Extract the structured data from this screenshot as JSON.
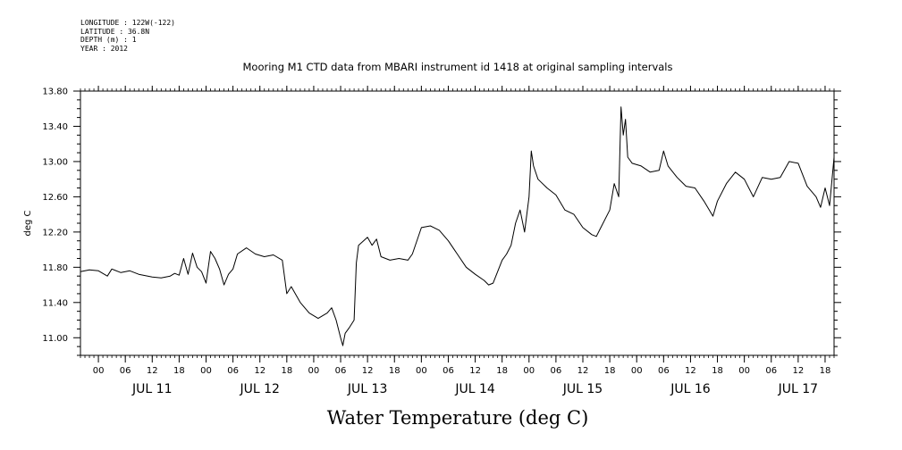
{
  "meta": {
    "longitude": "LONGITUDE : 122W(-122)",
    "latitude": "LATITUDE : 36.8N",
    "depth": "DEPTH (m) : 1",
    "year": "YEAR : 2012"
  },
  "chart_data": {
    "type": "line",
    "title": "Mooring M1 CTD data from MBARI instrument id 1418 at original sampling intervals",
    "xlabel": "Water Temperature (deg C)",
    "ylabel": "deg C",
    "ylim": [
      10.8,
      13.8
    ],
    "xlim": [
      "2012-07-10T20:00",
      "2012-07-17T20:00"
    ],
    "y_ticks": [
      "11.00",
      "11.40",
      "11.80",
      "12.20",
      "12.60",
      "13.00",
      "13.40",
      "13.80"
    ],
    "x_hour_ticks": [
      "00",
      "06",
      "12",
      "18",
      "00",
      "06",
      "12",
      "18",
      "00",
      "06",
      "12",
      "18",
      "00",
      "06",
      "12",
      "18",
      "00",
      "06",
      "12",
      "18",
      "00",
      "06",
      "12",
      "18",
      "00",
      "06",
      "12",
      "18"
    ],
    "x_day_labels": [
      "JUL 11",
      "JUL 12",
      "JUL 13",
      "JUL 14",
      "JUL 15",
      "JUL 16",
      "JUL 17"
    ],
    "grid": false,
    "series": [
      {
        "color": "#000000",
        "points": [
          [
            "2012-07-10T20:00",
            11.75
          ],
          [
            "2012-07-10T22:00",
            11.77
          ],
          [
            "2012-07-11T00:00",
            11.76
          ],
          [
            "2012-07-11T02:00",
            11.7
          ],
          [
            "2012-07-11T03:00",
            11.78
          ],
          [
            "2012-07-11T05:00",
            11.74
          ],
          [
            "2012-07-11T07:00",
            11.76
          ],
          [
            "2012-07-11T09:00",
            11.72
          ],
          [
            "2012-07-11T12:00",
            11.69
          ],
          [
            "2012-07-11T14:00",
            11.68
          ],
          [
            "2012-07-11T16:00",
            11.7
          ],
          [
            "2012-07-11T17:00",
            11.73
          ],
          [
            "2012-07-11T18:00",
            11.71
          ],
          [
            "2012-07-11T19:00",
            11.9
          ],
          [
            "2012-07-11T20:00",
            11.72
          ],
          [
            "2012-07-11T21:00",
            11.96
          ],
          [
            "2012-07-11T22:00",
            11.8
          ],
          [
            "2012-07-11T23:00",
            11.75
          ],
          [
            "2012-07-12T00:00",
            11.62
          ],
          [
            "2012-07-12T01:00",
            11.98
          ],
          [
            "2012-07-12T02:00",
            11.9
          ],
          [
            "2012-07-12T03:00",
            11.78
          ],
          [
            "2012-07-12T04:00",
            11.6
          ],
          [
            "2012-07-12T05:00",
            11.72
          ],
          [
            "2012-07-12T06:00",
            11.78
          ],
          [
            "2012-07-12T07:00",
            11.95
          ],
          [
            "2012-07-12T09:00",
            12.02
          ],
          [
            "2012-07-12T11:00",
            11.95
          ],
          [
            "2012-07-12T13:00",
            11.92
          ],
          [
            "2012-07-12T15:00",
            11.94
          ],
          [
            "2012-07-12T17:00",
            11.88
          ],
          [
            "2012-07-12T18:00",
            11.5
          ],
          [
            "2012-07-12T19:00",
            11.58
          ],
          [
            "2012-07-12T21:00",
            11.4
          ],
          [
            "2012-07-12T23:00",
            11.28
          ],
          [
            "2012-07-13T01:00",
            11.22
          ],
          [
            "2012-07-13T03:00",
            11.28
          ],
          [
            "2012-07-13T04:00",
            11.34
          ],
          [
            "2012-07-13T05:00",
            11.2
          ],
          [
            "2012-07-13T06:00",
            11.0
          ],
          [
            "2012-07-13T06:30",
            10.91
          ],
          [
            "2012-07-13T07:00",
            11.05
          ],
          [
            "2012-07-13T08:00",
            11.12
          ],
          [
            "2012-07-13T09:00",
            11.2
          ],
          [
            "2012-07-13T09:30",
            11.85
          ],
          [
            "2012-07-13T10:00",
            12.05
          ],
          [
            "2012-07-13T12:00",
            12.14
          ],
          [
            "2012-07-13T13:00",
            12.05
          ],
          [
            "2012-07-13T14:00",
            12.12
          ],
          [
            "2012-07-13T15:00",
            11.92
          ],
          [
            "2012-07-13T17:00",
            11.88
          ],
          [
            "2012-07-13T19:00",
            11.9
          ],
          [
            "2012-07-13T21:00",
            11.88
          ],
          [
            "2012-07-13T22:00",
            11.95
          ],
          [
            "2012-07-14T00:00",
            12.25
          ],
          [
            "2012-07-14T02:00",
            12.27
          ],
          [
            "2012-07-14T04:00",
            12.22
          ],
          [
            "2012-07-14T06:00",
            12.1
          ],
          [
            "2012-07-14T08:00",
            11.95
          ],
          [
            "2012-07-14T10:00",
            11.8
          ],
          [
            "2012-07-14T12:00",
            11.72
          ],
          [
            "2012-07-14T14:00",
            11.65
          ],
          [
            "2012-07-14T15:00",
            11.6
          ],
          [
            "2012-07-14T16:00",
            11.62
          ],
          [
            "2012-07-14T18:00",
            11.88
          ],
          [
            "2012-07-14T19:00",
            11.95
          ],
          [
            "2012-07-14T20:00",
            12.05
          ],
          [
            "2012-07-14T21:00",
            12.3
          ],
          [
            "2012-07-14T22:00",
            12.45
          ],
          [
            "2012-07-14T23:00",
            12.2
          ],
          [
            "2012-07-15T00:00",
            12.6
          ],
          [
            "2012-07-15T00:30",
            13.12
          ],
          [
            "2012-07-15T01:00",
            12.95
          ],
          [
            "2012-07-15T02:00",
            12.8
          ],
          [
            "2012-07-15T04:00",
            12.7
          ],
          [
            "2012-07-15T06:00",
            12.62
          ],
          [
            "2012-07-15T08:00",
            12.45
          ],
          [
            "2012-07-15T10:00",
            12.4
          ],
          [
            "2012-07-15T12:00",
            12.25
          ],
          [
            "2012-07-15T14:00",
            12.17
          ],
          [
            "2012-07-15T15:00",
            12.15
          ],
          [
            "2012-07-15T16:00",
            12.25
          ],
          [
            "2012-07-15T18:00",
            12.45
          ],
          [
            "2012-07-15T19:00",
            12.75
          ],
          [
            "2012-07-15T20:00",
            12.6
          ],
          [
            "2012-07-15T20:30",
            13.62
          ],
          [
            "2012-07-15T21:00",
            13.3
          ],
          [
            "2012-07-15T21:30",
            13.48
          ],
          [
            "2012-07-15T22:00",
            13.05
          ],
          [
            "2012-07-15T23:00",
            12.98
          ],
          [
            "2012-07-16T01:00",
            12.95
          ],
          [
            "2012-07-16T03:00",
            12.88
          ],
          [
            "2012-07-16T05:00",
            12.9
          ],
          [
            "2012-07-16T06:00",
            13.12
          ],
          [
            "2012-07-16T07:00",
            12.95
          ],
          [
            "2012-07-16T09:00",
            12.82
          ],
          [
            "2012-07-16T11:00",
            12.72
          ],
          [
            "2012-07-16T13:00",
            12.7
          ],
          [
            "2012-07-16T15:00",
            12.55
          ],
          [
            "2012-07-16T17:00",
            12.38
          ],
          [
            "2012-07-16T18:00",
            12.55
          ],
          [
            "2012-07-16T20:00",
            12.75
          ],
          [
            "2012-07-16T22:00",
            12.88
          ],
          [
            "2012-07-17T00:00",
            12.8
          ],
          [
            "2012-07-17T02:00",
            12.6
          ],
          [
            "2012-07-17T04:00",
            12.82
          ],
          [
            "2012-07-17T06:00",
            12.8
          ],
          [
            "2012-07-17T08:00",
            12.82
          ],
          [
            "2012-07-17T10:00",
            13.0
          ],
          [
            "2012-07-17T12:00",
            12.98
          ],
          [
            "2012-07-17T14:00",
            12.72
          ],
          [
            "2012-07-17T16:00",
            12.6
          ],
          [
            "2012-07-17T17:00",
            12.48
          ],
          [
            "2012-07-17T18:00",
            12.7
          ],
          [
            "2012-07-17T19:00",
            12.5
          ],
          [
            "2012-07-17T20:00",
            13.05
          ]
        ]
      }
    ]
  }
}
